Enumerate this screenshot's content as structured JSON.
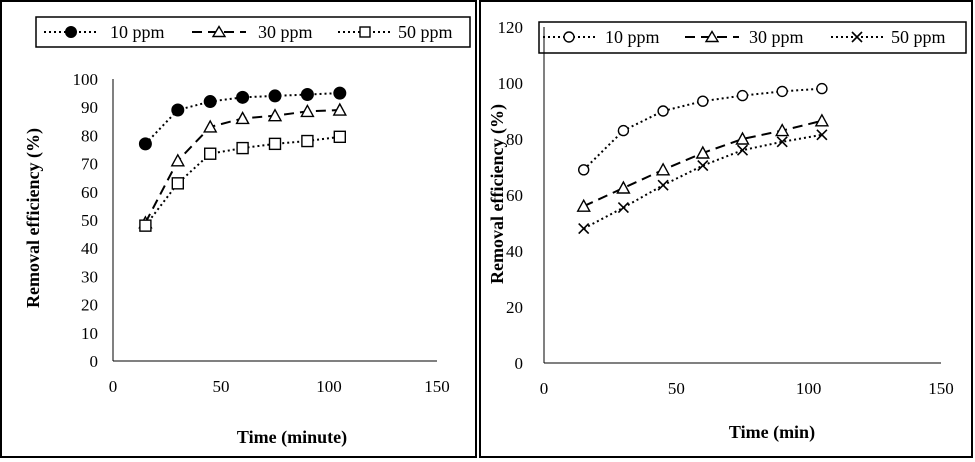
{
  "chart_data": [
    {
      "type": "line",
      "title": "",
      "xlabel": "Time (minute)",
      "ylabel": "Removal efficiency (%)",
      "xlim": [
        0,
        150
      ],
      "ylim": [
        0,
        100
      ],
      "xticks": [
        "0",
        "50",
        "100",
        "150"
      ],
      "yticks": [
        "0",
        "10",
        "20",
        "30",
        "40",
        "50",
        "60",
        "70",
        "80",
        "90",
        "100"
      ],
      "grid": false,
      "legend_position": "top",
      "x": [
        15,
        30,
        45,
        60,
        75,
        90,
        105
      ],
      "series": [
        {
          "name": "10 ppm",
          "values": [
            77,
            89,
            92,
            93.5,
            94,
            94.5,
            95
          ],
          "marker": "filled-circle",
          "line": "dotted"
        },
        {
          "name": "30 ppm",
          "values": [
            49,
            71,
            83,
            86,
            87,
            88.5,
            89
          ],
          "marker": "open-triangle",
          "line": "dashed"
        },
        {
          "name": "50 ppm",
          "values": [
            48,
            63,
            73.5,
            75.5,
            77,
            78,
            79.5
          ],
          "marker": "open-square",
          "line": "dotted"
        }
      ]
    },
    {
      "type": "line",
      "title": "",
      "xlabel": "Time (min)",
      "ylabel": "Removal efficiency (%)",
      "xlim": [
        0,
        150
      ],
      "ylim": [
        0,
        120
      ],
      "xticks": [
        "0",
        "50",
        "100",
        "150"
      ],
      "yticks": [
        "0",
        "20",
        "40",
        "60",
        "80",
        "100",
        "120"
      ],
      "grid": false,
      "legend_position": "top",
      "x": [
        15,
        30,
        45,
        60,
        75,
        90,
        105
      ],
      "series": [
        {
          "name": "10 ppm",
          "values": [
            69,
            83,
            90,
            93.5,
            95.5,
            97,
            98
          ],
          "marker": "open-circle",
          "line": "dotted"
        },
        {
          "name": "30 ppm",
          "values": [
            56,
            62.5,
            69,
            75,
            80,
            83,
            86.5
          ],
          "marker": "open-triangle",
          "line": "dashed"
        },
        {
          "name": "50 ppm",
          "values": [
            48,
            55.5,
            63.5,
            70.5,
            76,
            79,
            81.5
          ],
          "marker": "cross",
          "line": "dotted"
        }
      ]
    }
  ]
}
